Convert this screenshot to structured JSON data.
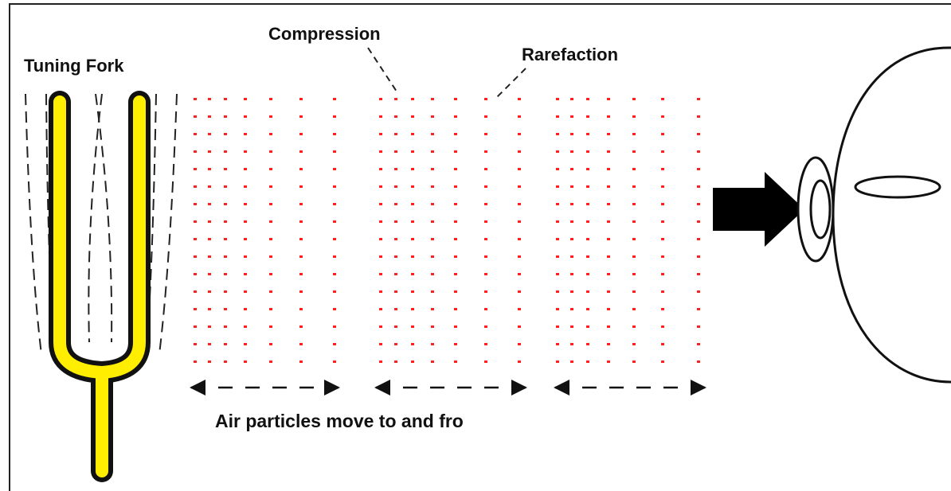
{
  "labels": {
    "tuning_fork": "Tuning Fork",
    "compression": "Compression",
    "rarefaction": "Rarefaction",
    "caption": "Air particles move to and fro"
  }
}
